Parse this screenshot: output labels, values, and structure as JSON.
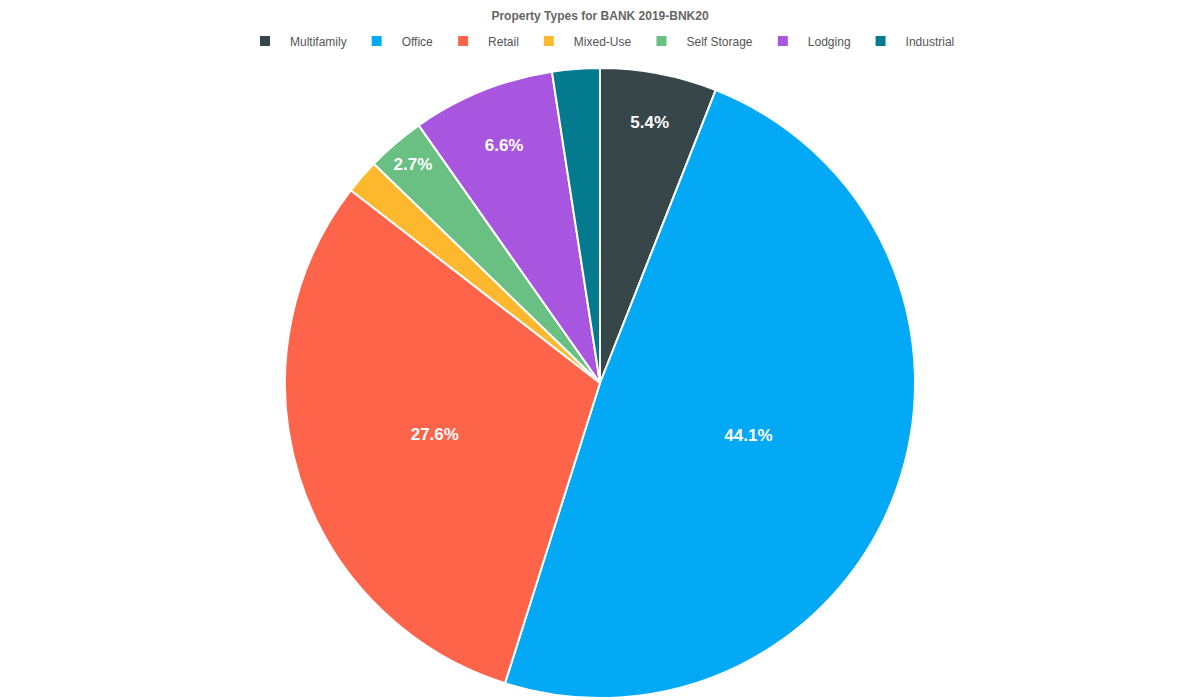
{
  "chart_data": {
    "type": "pie",
    "title": "Property Types for BANK 2019-BNK20",
    "categories": [
      "Multifamily",
      "Office",
      "Retail",
      "Mixed-Use",
      "Self Storage",
      "Lodging",
      "Industrial"
    ],
    "values": [
      5.4,
      44.1,
      27.6,
      1.6,
      2.7,
      6.6,
      2.2
    ],
    "value_labels": [
      "5.4%",
      "44.1%",
      "27.6%",
      null,
      "2.7%",
      "6.6%",
      null
    ],
    "colors": [
      "#374649",
      "#03a9f4",
      "#fe6449",
      "#fdb82d",
      "#6abf83",
      "#a855e0",
      "#047a8f"
    ],
    "data_labels": true,
    "legend": "top"
  }
}
